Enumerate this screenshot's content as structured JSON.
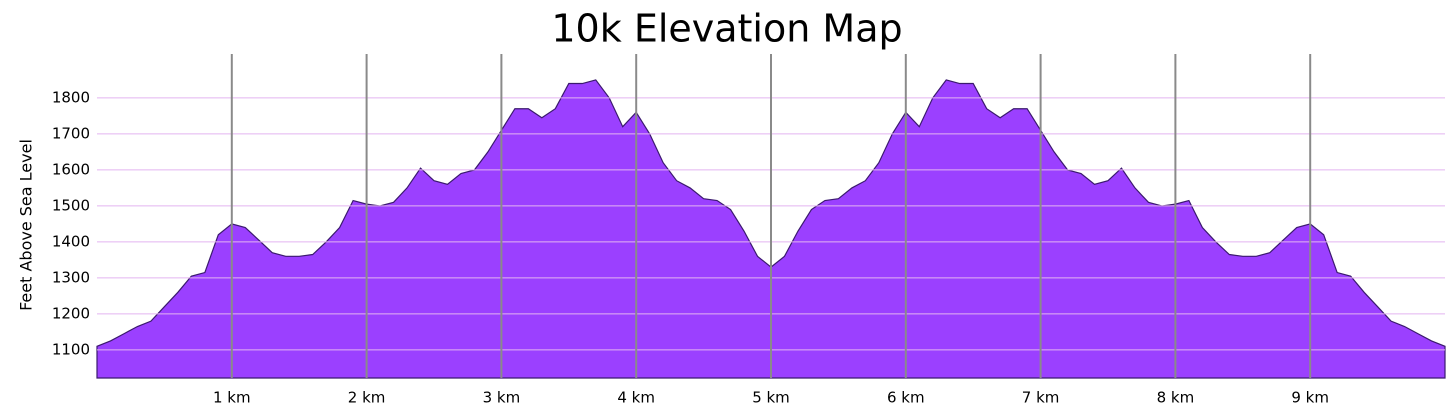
{
  "chart_data": {
    "type": "area",
    "title": "10k Elevation Map",
    "y_label": "Feet Above Sea Level",
    "x": [
      0,
      0.1,
      0.2,
      0.3,
      0.4,
      0.5,
      0.6,
      0.7,
      0.8,
      0.9,
      1,
      1.1,
      1.2,
      1.3,
      1.4,
      1.5,
      1.6,
      1.7,
      1.8,
      1.9,
      2,
      2.1,
      2.2,
      2.3,
      2.4,
      2.5,
      2.6,
      2.7,
      2.8,
      2.9,
      3,
      3.1,
      3.2,
      3.3,
      3.4,
      3.5,
      3.6,
      3.7,
      3.8,
      3.9,
      4,
      4.1,
      4.2,
      4.3,
      4.4,
      4.5,
      4.6,
      4.7,
      4.8,
      4.9,
      5,
      5.1,
      5.2,
      5.3,
      5.4,
      5.5,
      5.6,
      5.7,
      5.8,
      5.9,
      6,
      6.1,
      6.2,
      6.3,
      6.4,
      6.5,
      6.6,
      6.7,
      6.8,
      6.9,
      7,
      7.1,
      7.2,
      7.3,
      7.4,
      7.5,
      7.6,
      7.7,
      7.8,
      7.9,
      8,
      8.1,
      8.2,
      8.3,
      8.4,
      8.5,
      8.6,
      8.7,
      8.8,
      8.9,
      9,
      9.1,
      9.2,
      9.3,
      9.4,
      9.5,
      9.6,
      9.7,
      9.8,
      9.9,
      10
    ],
    "values": [
      1110,
      1125,
      1145,
      1165,
      1180,
      1220,
      1260,
      1305,
      1315,
      1420,
      1450,
      1440,
      1405,
      1370,
      1360,
      1360,
      1365,
      1400,
      1440,
      1515,
      1505,
      1500,
      1510,
      1550,
      1605,
      1570,
      1560,
      1590,
      1600,
      1650,
      1710,
      1770,
      1770,
      1745,
      1770,
      1840,
      1840,
      1850,
      1800,
      1720,
      1760,
      1700,
      1620,
      1570,
      1550,
      1520,
      1515,
      1490,
      1430,
      1360,
      1330,
      1360,
      1430,
      1490,
      1515,
      1520,
      1550,
      1570,
      1620,
      1700,
      1760,
      1720,
      1800,
      1850,
      1840,
      1840,
      1770,
      1745,
      1770,
      1770,
      1710,
      1650,
      1600,
      1590,
      1560,
      1570,
      1605,
      1550,
      1510,
      1500,
      1505,
      1515,
      1440,
      1400,
      1365,
      1360,
      1360,
      1370,
      1405,
      1440,
      1450,
      1420,
      1315,
      1305,
      1260,
      1220,
      1180,
      1165,
      1145,
      1125,
      1110
    ],
    "color": "#9b40ff",
    "line_color": "#3b1a6e",
    "xlim": [
      0,
      10
    ],
    "xticks": [
      {
        "value": 1,
        "label": "1 km"
      },
      {
        "value": 2,
        "label": "2 km"
      },
      {
        "value": 3,
        "label": "3 km"
      },
      {
        "value": 4,
        "label": "4 km"
      },
      {
        "value": 5,
        "label": "5 km"
      },
      {
        "value": 6,
        "label": "6 km"
      },
      {
        "value": 7,
        "label": "7 km"
      },
      {
        "value": 8,
        "label": "8 km"
      },
      {
        "value": 9,
        "label": "9 km"
      }
    ],
    "ylim": [
      1022,
      1922
    ],
    "yticks": [
      1100,
      1200,
      1300,
      1400,
      1500,
      1600,
      1700,
      1800
    ],
    "grid": true
  }
}
